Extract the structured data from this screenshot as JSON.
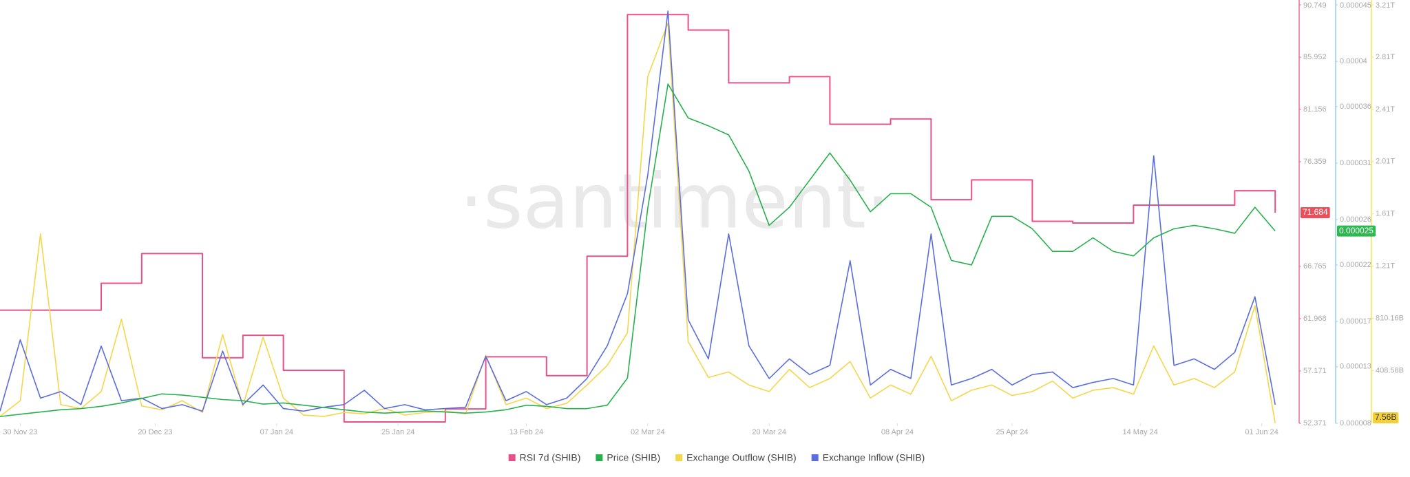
{
  "chart_data": {
    "type": "line",
    "watermark": "·santiment·",
    "x": [
      "2023-11-27",
      "2023-11-30",
      "2023-12-03",
      "2023-12-06",
      "2023-12-09",
      "2023-12-12",
      "2023-12-15",
      "2023-12-18",
      "2023-12-21",
      "2023-12-24",
      "2023-12-27",
      "2023-12-30",
      "2024-01-02",
      "2024-01-05",
      "2024-01-08",
      "2024-01-11",
      "2024-01-14",
      "2024-01-17",
      "2024-01-20",
      "2024-01-23",
      "2024-01-26",
      "2024-01-29",
      "2024-02-01",
      "2024-02-04",
      "2024-02-07",
      "2024-02-10",
      "2024-02-13",
      "2024-02-16",
      "2024-02-19",
      "2024-02-22",
      "2024-02-25",
      "2024-02-28",
      "2024-03-02",
      "2024-03-05",
      "2024-03-08",
      "2024-03-11",
      "2024-03-14",
      "2024-03-17",
      "2024-03-20",
      "2024-03-23",
      "2024-03-26",
      "2024-03-29",
      "2024-04-01",
      "2024-04-04",
      "2024-04-07",
      "2024-04-10",
      "2024-04-13",
      "2024-04-16",
      "2024-04-19",
      "2024-04-22",
      "2024-04-25",
      "2024-04-28",
      "2024-05-01",
      "2024-05-04",
      "2024-05-07",
      "2024-05-10",
      "2024-05-13",
      "2024-05-16",
      "2024-05-19",
      "2024-05-22",
      "2024-05-25",
      "2024-05-28",
      "2024-05-31",
      "2024-06-03"
    ],
    "xlim": [
      "2023-11-27",
      "2024-06-04"
    ],
    "xticks": [
      {
        "value": "2023-11-30",
        "label": "30 Nov 23"
      },
      {
        "value": "2023-12-20",
        "label": "20 Dec 23"
      },
      {
        "value": "2024-01-07",
        "label": "07 Jan 24"
      },
      {
        "value": "2024-01-25",
        "label": "25 Jan 24"
      },
      {
        "value": "2024-02-13",
        "label": "13 Feb 24"
      },
      {
        "value": "2024-03-02",
        "label": "02 Mar 24"
      },
      {
        "value": "2024-03-20",
        "label": "20 Mar 24"
      },
      {
        "value": "2024-04-08",
        "label": "08 Apr 24"
      },
      {
        "value": "2024-04-25",
        "label": "25 Apr 24"
      },
      {
        "value": "2024-05-14",
        "label": "14 May 24"
      },
      {
        "value": "2024-06-01",
        "label": "01 Jun 24"
      }
    ],
    "ylim": [
      52.371,
      90.749
    ],
    "yticks": [
      52.371,
      57.171,
      61.968,
      66.765,
      76.359,
      81.156,
      85.952,
      90.749
    ],
    "y2lim": [
      8e-06,
      4.5e-05
    ],
    "y2ticks": [
      8e-06,
      1.3e-05,
      1.7e-05,
      2.2e-05,
      2.6e-05,
      3.1e-05,
      3.6e-05,
      4e-05,
      4.5e-05
    ],
    "y3lim": [
      7,
      3210
    ],
    "y3ticks": [
      {
        "value": 408.58,
        "label": "408.58B"
      },
      {
        "value": 810.16,
        "label": "810.16B"
      },
      {
        "value": 1210,
        "label": "1.21T"
      },
      {
        "value": 1610,
        "label": "1.61T"
      },
      {
        "value": 2010,
        "label": "2.01T"
      },
      {
        "value": 2410,
        "label": "2.41T"
      },
      {
        "value": 2810,
        "label": "2.81T"
      },
      {
        "value": 3210,
        "label": "3.21T"
      }
    ],
    "axis_colors": {
      "y": "#f06a9a",
      "y2": "#8fd0ee",
      "y3": "#f3e35a"
    },
    "grid": false,
    "legend": "bottom",
    "series": [
      {
        "name": "RSI 7d (SHIB)",
        "color": "#e8508a",
        "axis": "y",
        "step": true,
        "last_label": "71.684",
        "values": [
          62.75,
          62.75,
          62.75,
          62.75,
          62.75,
          65.22,
          65.22,
          67.94,
          67.94,
          67.94,
          58.38,
          58.38,
          60.44,
          60.44,
          57.23,
          57.23,
          57.23,
          52.5,
          52.5,
          52.5,
          52.5,
          52.5,
          53.69,
          53.69,
          58.47,
          58.47,
          58.47,
          56.74,
          56.74,
          67.69,
          67.69,
          89.85,
          89.85,
          89.85,
          88.44,
          88.44,
          83.59,
          83.59,
          83.59,
          84.16,
          84.16,
          79.8,
          79.8,
          79.8,
          80.29,
          80.29,
          72.88,
          72.88,
          74.69,
          74.69,
          74.69,
          70.9,
          70.9,
          70.74,
          70.74,
          70.74,
          72.38,
          72.38,
          72.38,
          72.38,
          72.38,
          73.7,
          73.7,
          71.684
        ]
      },
      {
        "name": "Exchange Outflow (SHIB)",
        "color": "#f5d64a",
        "axis": "y3",
        "last_label": "7.56B",
        "values": [
          60,
          180,
          1457,
          150,
          120,
          250,
          804,
          140,
          110,
          180,
          90,
          687,
          140,
          667,
          200,
          70,
          60,
          90,
          80,
          120,
          70,
          90,
          100,
          80,
          529,
          150,
          200,
          120,
          160,
          300,
          450,
          700,
          2660,
          3072,
          632,
          358,
          400,
          300,
          250,
          420,
          280,
          350,
          480,
          200,
          300,
          230,
          520,
          180,
          260,
          300,
          220,
          250,
          330,
          200,
          260,
          280,
          230,
          600,
          300,
          350,
          280,
          400,
          907,
          7.56
        ]
      },
      {
        "name": "Exchange Inflow (SHIB)",
        "color": "#5a6de0",
        "axis": "y3",
        "values": [
          100,
          646,
          200,
          250,
          150,
          598,
          180,
          200,
          120,
          150,
          100,
          560,
          150,
          300,
          120,
          100,
          130,
          150,
          260,
          120,
          150,
          110,
          120,
          130,
          520,
          180,
          250,
          150,
          200,
          350,
          600,
          1000,
          1904,
          3162,
          800,
          500,
          1457,
          600,
          350,
          500,
          380,
          450,
          1251,
          300,
          420,
          350,
          1457,
          300,
          350,
          420,
          300,
          380,
          400,
          280,
          320,
          350,
          300,
          2055,
          450,
          500,
          420,
          550,
          976,
          150
        ]
      },
      {
        "name": "Price (SHIB)",
        "color": "#26b14c",
        "axis": "y2",
        "last_label": "0.000025",
        "values": [
          8.6e-06,
          8.8e-06,
          9e-06,
          9.2e-06,
          9.3e-06,
          9.5e-06,
          9.8e-06,
          1.02e-05,
          1.06e-05,
          1.05e-05,
          1.03e-05,
          1.01e-05,
          1e-05,
          9.7e-06,
          9.8e-06,
          9.6e-06,
          9.4e-06,
          9.2e-06,
          9e-06,
          8.9e-06,
          9e-06,
          9.1e-06,
          9e-06,
          8.9e-06,
          9e-06,
          9.2e-06,
          9.6e-06,
          9.5e-06,
          9.3e-06,
          9.3e-06,
          9.6e-06,
          1.2e-05,
          2.7e-05,
          3.8e-05,
          3.5e-05,
          3.43e-05,
          3.35e-05,
          3.03e-05,
          2.55e-05,
          2.71e-05,
          2.95e-05,
          3.19e-05,
          2.95e-05,
          2.67e-05,
          2.83e-05,
          2.83e-05,
          2.71e-05,
          2.24e-05,
          2.2e-05,
          2.63e-05,
          2.63e-05,
          2.52e-05,
          2.32e-05,
          2.32e-05,
          2.44e-05,
          2.32e-05,
          2.28e-05,
          2.44e-05,
          2.52e-05,
          2.55e-05,
          2.52e-05,
          2.48e-05,
          2.71e-05,
          2.5e-05
        ]
      }
    ],
    "legend_order": [
      0,
      3,
      1,
      2
    ]
  }
}
